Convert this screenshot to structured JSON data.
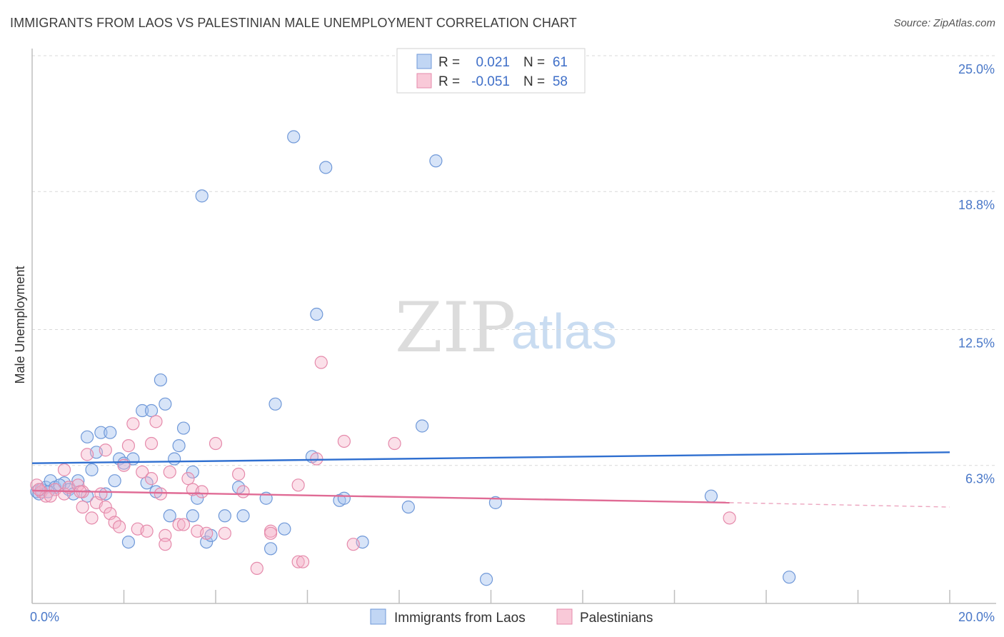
{
  "title": "IMMIGRANTS FROM LAOS VS PALESTINIAN MALE UNEMPLOYMENT CORRELATION CHART",
  "source": "Source: ZipAtlas.com",
  "watermark": {
    "zip": "ZIP",
    "atlas": "atlas"
  },
  "legend_top": {
    "rows": [
      {
        "r_label": "R =",
        "r_value": "0.021",
        "n_label": "N =",
        "n_value": "61",
        "color": "#a6c4f0"
      },
      {
        "r_label": "R =",
        "r_value": "-0.051",
        "n_label": "N =",
        "n_value": "58",
        "color": "#f6b2c8"
      }
    ]
  },
  "legend_bottom": [
    {
      "label": "Immigrants from Laos",
      "color": "#a6c4f0"
    },
    {
      "label": "Palestinians",
      "color": "#f6b2c8"
    }
  ],
  "chart_data": {
    "type": "scatter",
    "title": "IMMIGRANTS FROM LAOS VS PALESTINIAN MALE UNEMPLOYMENT CORRELATION CHART",
    "xlabel": "",
    "ylabel": "Male Unemployment",
    "xlim": [
      0,
      20
    ],
    "ylim": [
      0,
      25.0
    ],
    "x_tick_labels": [
      "0.0%",
      "20.0%"
    ],
    "y_tick_labels": [
      "6.3%",
      "12.5%",
      "18.8%",
      "25.0%"
    ],
    "y_tick_values": [
      6.3,
      12.5,
      18.8,
      25.0
    ],
    "series": [
      {
        "name": "Immigrants from Laos",
        "color": "#6f98d8",
        "trend": {
          "x": [
            0,
            20
          ],
          "y": [
            6.4,
            6.9
          ],
          "color": "#2f6fd0"
        },
        "points": [
          [
            0.1,
            5.1
          ],
          [
            0.2,
            5.2
          ],
          [
            0.3,
            5.3
          ],
          [
            0.4,
            5.6
          ],
          [
            0.5,
            5.3
          ],
          [
            0.7,
            5.5
          ],
          [
            0.8,
            5.2
          ],
          [
            1.0,
            5.6
          ],
          [
            1.2,
            4.9
          ],
          [
            1.3,
            6.1
          ],
          [
            1.2,
            7.6
          ],
          [
            1.4,
            6.9
          ],
          [
            1.5,
            7.8
          ],
          [
            1.7,
            7.8
          ],
          [
            1.8,
            5.6
          ],
          [
            1.6,
            5.0
          ],
          [
            1.9,
            6.6
          ],
          [
            2.0,
            6.4
          ],
          [
            2.2,
            6.6
          ],
          [
            2.4,
            8.8
          ],
          [
            2.6,
            8.8
          ],
          [
            2.8,
            10.2
          ],
          [
            2.9,
            9.1
          ],
          [
            2.5,
            5.5
          ],
          [
            2.7,
            5.1
          ],
          [
            3.0,
            4.0
          ],
          [
            3.1,
            6.6
          ],
          [
            3.3,
            8.0
          ],
          [
            3.2,
            7.2
          ],
          [
            3.5,
            6.0
          ],
          [
            3.6,
            4.8
          ],
          [
            3.5,
            4.0
          ],
          [
            3.8,
            2.8
          ],
          [
            3.9,
            3.1
          ],
          [
            4.2,
            4.0
          ],
          [
            4.6,
            4.0
          ],
          [
            4.5,
            5.3
          ],
          [
            5.1,
            4.8
          ],
          [
            5.2,
            2.5
          ],
          [
            5.3,
            9.1
          ],
          [
            5.5,
            3.4
          ],
          [
            5.7,
            21.3
          ],
          [
            6.4,
            19.9
          ],
          [
            6.2,
            13.2
          ],
          [
            6.1,
            6.7
          ],
          [
            6.7,
            4.7
          ],
          [
            6.8,
            4.8
          ],
          [
            7.2,
            2.8
          ],
          [
            8.2,
            4.4
          ],
          [
            8.5,
            8.1
          ],
          [
            8.8,
            20.2
          ],
          [
            10.1,
            4.6
          ],
          [
            3.7,
            18.6
          ],
          [
            2.1,
            2.8
          ],
          [
            9.9,
            1.1
          ],
          [
            14.8,
            4.9
          ],
          [
            16.5,
            1.2
          ],
          [
            0.15,
            5.0
          ],
          [
            0.35,
            5.1
          ],
          [
            0.6,
            5.4
          ],
          [
            0.9,
            5.0
          ]
        ]
      },
      {
        "name": "Palestinians",
        "color": "#e58aab",
        "trend": {
          "x": [
            0,
            15.2
          ],
          "y": [
            5.15,
            4.6
          ],
          "dashed_x": [
            15.2,
            20
          ],
          "dashed_y": [
            4.6,
            4.4
          ],
          "color": "#e06b95"
        },
        "points": [
          [
            0.1,
            5.4
          ],
          [
            0.2,
            5.1
          ],
          [
            0.3,
            4.9
          ],
          [
            0.5,
            5.2
          ],
          [
            0.7,
            5.0
          ],
          [
            0.7,
            6.1
          ],
          [
            0.8,
            5.3
          ],
          [
            1.0,
            5.4
          ],
          [
            1.1,
            4.4
          ],
          [
            1.1,
            5.1
          ],
          [
            1.2,
            6.8
          ],
          [
            1.3,
            3.9
          ],
          [
            1.4,
            4.6
          ],
          [
            1.5,
            5.0
          ],
          [
            1.6,
            7.0
          ],
          [
            1.6,
            4.4
          ],
          [
            1.7,
            4.1
          ],
          [
            1.8,
            3.7
          ],
          [
            1.9,
            3.5
          ],
          [
            2.0,
            6.3
          ],
          [
            2.1,
            7.2
          ],
          [
            2.2,
            8.2
          ],
          [
            2.3,
            3.4
          ],
          [
            2.4,
            6.0
          ],
          [
            2.5,
            3.3
          ],
          [
            2.6,
            5.7
          ],
          [
            2.6,
            7.3
          ],
          [
            2.7,
            8.3
          ],
          [
            2.8,
            5.0
          ],
          [
            2.9,
            3.1
          ],
          [
            2.9,
            2.7
          ],
          [
            3.0,
            6.0
          ],
          [
            3.2,
            3.6
          ],
          [
            3.4,
            5.7
          ],
          [
            3.5,
            5.2
          ],
          [
            3.6,
            3.3
          ],
          [
            3.7,
            5.1
          ],
          [
            3.8,
            3.2
          ],
          [
            4.0,
            7.3
          ],
          [
            4.2,
            3.2
          ],
          [
            4.5,
            5.9
          ],
          [
            4.6,
            5.1
          ],
          [
            4.9,
            1.6
          ],
          [
            5.2,
            3.3
          ],
          [
            5.8,
            1.9
          ],
          [
            5.9,
            1.9
          ],
          [
            5.8,
            5.4
          ],
          [
            6.2,
            6.6
          ],
          [
            6.3,
            11.0
          ],
          [
            6.8,
            7.4
          ],
          [
            7.0,
            2.7
          ],
          [
            7.9,
            7.3
          ],
          [
            15.2,
            3.9
          ],
          [
            0.15,
            5.2
          ],
          [
            0.4,
            4.9
          ],
          [
            1.05,
            5.1
          ],
          [
            3.3,
            3.6
          ],
          [
            5.2,
            3.2
          ]
        ]
      }
    ]
  }
}
